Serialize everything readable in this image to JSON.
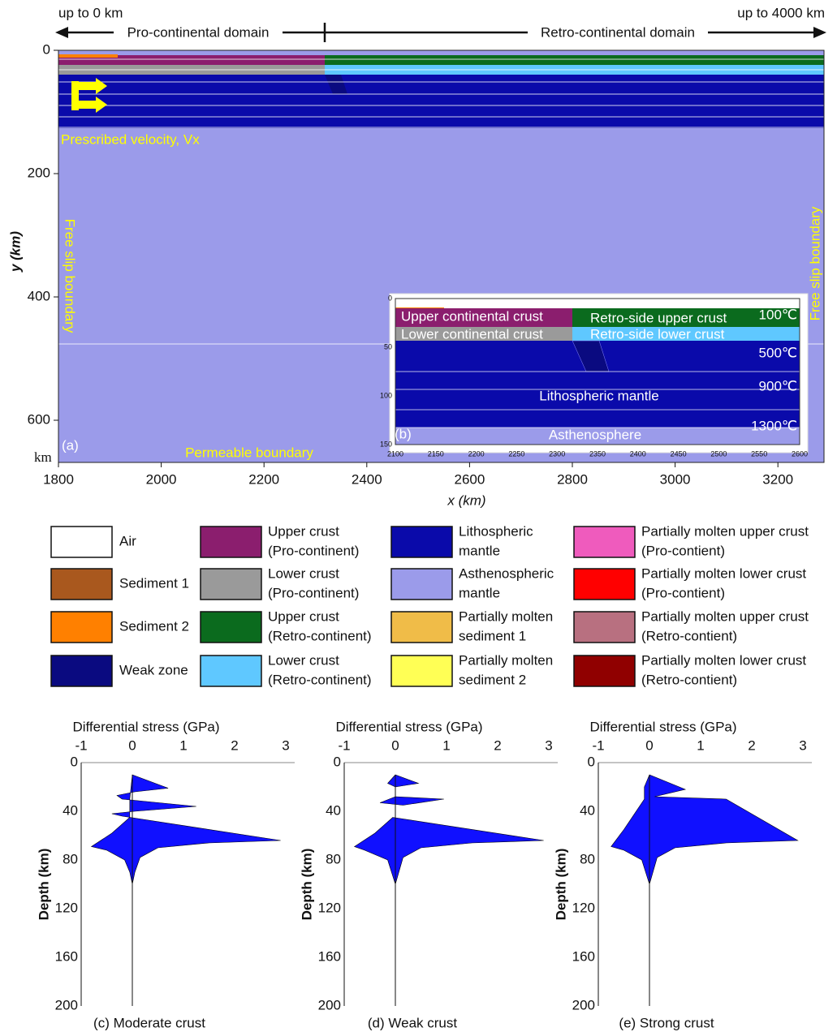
{
  "panel_a": {
    "left_label": "up to 0 km",
    "right_label": "up to 4000 km",
    "pro_domain": "Pro-continental domain",
    "retro_domain": "Retro-continental domain",
    "velocity": "Prescribed velocity, Vx",
    "left_boundary": "Free slip boundary",
    "right_boundary": "Free slip boundary",
    "bottom_boundary": "Permeable boundary",
    "tag": "(a)",
    "km": "km",
    "y_label": "y (km)",
    "x_label": "x (km)",
    "y_ticks": [
      0,
      200,
      400,
      600
    ],
    "x_ticks": [
      1800,
      2000,
      2200,
      2400,
      2600,
      2800,
      3000,
      3200
    ]
  },
  "panel_b": {
    "tag": "(b)",
    "upper_pro": "Upper continental crust",
    "upper_retro": "Retro-side upper crust",
    "lower_pro": "Lower continental crust",
    "lower_retro": "Retro-side lower crust",
    "mantle": "Lithospheric mantle",
    "asthenosphere": "Asthenosphere",
    "temps": [
      "100℃",
      "500℃",
      "900℃",
      "1300℃"
    ],
    "x_ticks": [
      2100,
      2150,
      2200,
      2250,
      2300,
      2350,
      2400,
      2450,
      2500,
      2550,
      2600
    ],
    "y_ticks": [
      0,
      50,
      100,
      150
    ]
  },
  "legend": [
    {
      "lines": [
        "Air"
      ],
      "color": "#ffffff"
    },
    {
      "lines": [
        "Sediment 1"
      ],
      "color": "#a9581e"
    },
    {
      "lines": [
        "Sediment 2"
      ],
      "color": "#ff8000"
    },
    {
      "lines": [
        "Weak zone"
      ],
      "color": "#0a0a80"
    },
    {
      "lines": [
        "Upper crust",
        "(Pro-continent)"
      ],
      "color": "#8b1e6e"
    },
    {
      "lines": [
        "Lower crust",
        "(Pro-continent)"
      ],
      "color": "#9a9a9a"
    },
    {
      "lines": [
        "Upper crust",
        "(Retro-continent)"
      ],
      "color": "#0b6b1e"
    },
    {
      "lines": [
        "Lower crust",
        "(Retro-continent)"
      ],
      "color": "#5fc8ff"
    },
    {
      "lines": [
        "Lithospheric",
        "mantle"
      ],
      "color": "#0a0aaa"
    },
    {
      "lines": [
        "Asthenospheric",
        "mantle"
      ],
      "color": "#9b9bea"
    },
    {
      "lines": [
        "Partially molten",
        "sediment 1"
      ],
      "color": "#f0bc48"
    },
    {
      "lines": [
        "Partially molten",
        "sediment 2"
      ],
      "color": "#ffff55"
    },
    {
      "lines": [
        "Partially molten upper crust",
        "(Pro-contient)"
      ],
      "color": "#ef5bbd"
    },
    {
      "lines": [
        "Partially molten lower crust",
        "(Pro-contient)"
      ],
      "color": "#ff0000"
    },
    {
      "lines": [
        "Partially molten upper crust",
        "(Retro-contient)"
      ],
      "color": "#b87080"
    },
    {
      "lines": [
        "Partially molten lower crust",
        "(Retro-contient)"
      ],
      "color": "#900000"
    }
  ],
  "stress_panels": [
    {
      "x_label": "Differential stress (GPa)",
      "y_label": "Depth (km)",
      "x_ticks": [
        -1,
        0,
        1,
        2,
        3
      ],
      "y_ticks": [
        0,
        40,
        80,
        120,
        160,
        200
      ],
      "caption": "(c) Moderate crust"
    },
    {
      "x_label": "Differential stress (GPa)",
      "y_label": "Depth (km)",
      "x_ticks": [
        -1,
        0,
        1,
        2,
        3
      ],
      "y_ticks": [
        0,
        40,
        80,
        120,
        160,
        200
      ],
      "caption": "(d) Weak crust"
    },
    {
      "x_label": "Differential stress (GPa)",
      "y_label": "Depth (km)",
      "x_ticks": [
        -1,
        0,
        1,
        2,
        3
      ],
      "y_ticks": [
        0,
        40,
        80,
        120,
        160,
        200
      ],
      "caption": "(e) Strong crust"
    }
  ]
}
